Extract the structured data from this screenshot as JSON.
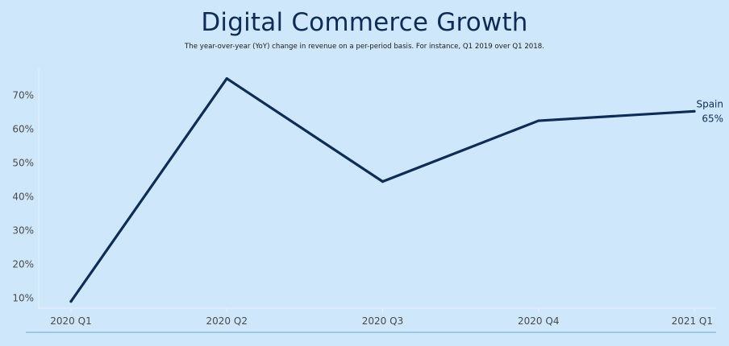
{
  "chart_data": {
    "type": "line",
    "title": "Digital Commerce Growth",
    "subtitle": "The year-over-year (YoY) change in revenue on a per-period basis. For instance, Q1 2019 over Q1 2018.",
    "categories": [
      "2020 Q1",
      "2020 Q2",
      "2020 Q3",
      "2020 Q4",
      "2021 Q1"
    ],
    "series": [
      {
        "name": "Spain",
        "values": [
          9.0,
          75.0,
          44.5,
          62.5,
          65.3
        ],
        "color": "#0d2c5a"
      }
    ],
    "end_label": {
      "series": "Spain",
      "value_text": "65%"
    },
    "ylim": [
      7,
      78
    ],
    "yticks": [
      10,
      20,
      30,
      40,
      50,
      60,
      70
    ],
    "ytick_labels": [
      "10%",
      "20%",
      "30%",
      "40%",
      "50%",
      "60%",
      "70%"
    ],
    "xlabel": "",
    "ylabel": "",
    "grid": false,
    "legend": "none"
  }
}
